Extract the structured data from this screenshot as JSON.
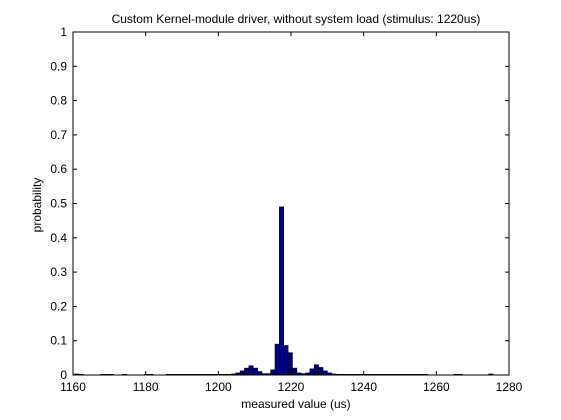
{
  "chart_data": {
    "type": "bar",
    "title": "Custom Kernel-module driver, without system load (stimulus: 1220us)",
    "xlabel": "measured value (us)",
    "ylabel": "probability",
    "xlim": [
      1160,
      1280
    ],
    "ylim": [
      0,
      1
    ],
    "xticks": [
      "1160",
      "1180",
      "1200",
      "1220",
      "1240",
      "1260",
      "1280"
    ],
    "yticks": [
      "0",
      "0.1",
      "0.2",
      "0.3",
      "0.4",
      "0.5",
      "0.6",
      "0.7",
      "0.8",
      "0.9",
      "1"
    ],
    "bin_width": 1.2,
    "grid": false,
    "bar_color": "#000080",
    "bar_edge": "#000000",
    "x": [
      1161,
      1162.2,
      1168.2,
      1169.4,
      1170.6,
      1174.2,
      1180.2,
      1181.4,
      1186.2,
      1187.4,
      1188.6,
      1189.8,
      1191,
      1192.2,
      1193.4,
      1194.6,
      1195.8,
      1197,
      1198.2,
      1199.4,
      1200.6,
      1201.8,
      1203,
      1204.2,
      1205.4,
      1206.6,
      1207.8,
      1209,
      1210.2,
      1211.4,
      1212.6,
      1213.8,
      1215,
      1216.2,
      1217.4,
      1218.6,
      1219.8,
      1221,
      1222.2,
      1223.4,
      1224.6,
      1225.8,
      1227,
      1228.2,
      1229.4,
      1230.6,
      1231.8,
      1233,
      1234.2,
      1235.4,
      1236.6,
      1237.8,
      1239,
      1240.2,
      1241.4,
      1242.6,
      1243.8,
      1245,
      1246.2,
      1247.4,
      1248.6,
      1249.8,
      1251,
      1252.2,
      1253.4,
      1254.6,
      1255.8,
      1257,
      1265.4,
      1266.6,
      1275
    ],
    "values": [
      0.003,
      0.002,
      0.002,
      0.002,
      0.002,
      0.002,
      0.002,
      0.002,
      0.002,
      0.002,
      0.002,
      0.002,
      0.002,
      0.002,
      0.002,
      0.002,
      0.002,
      0.002,
      0.002,
      0.002,
      0.002,
      0.002,
      0.002,
      0.003,
      0.006,
      0.012,
      0.02,
      0.027,
      0.02,
      0.01,
      0.004,
      0.004,
      0.015,
      0.09,
      0.49,
      0.086,
      0.065,
      0.02,
      0.006,
      0.004,
      0.006,
      0.018,
      0.03,
      0.022,
      0.012,
      0.006,
      0.003,
      0.002,
      0.002,
      0.002,
      0.002,
      0.002,
      0.002,
      0.002,
      0.002,
      0.002,
      0.002,
      0.002,
      0.002,
      0.002,
      0.002,
      0.002,
      0.002,
      0.002,
      0.002,
      0.002,
      0.002,
      0.002,
      0.002,
      0.002,
      0.003
    ]
  }
}
